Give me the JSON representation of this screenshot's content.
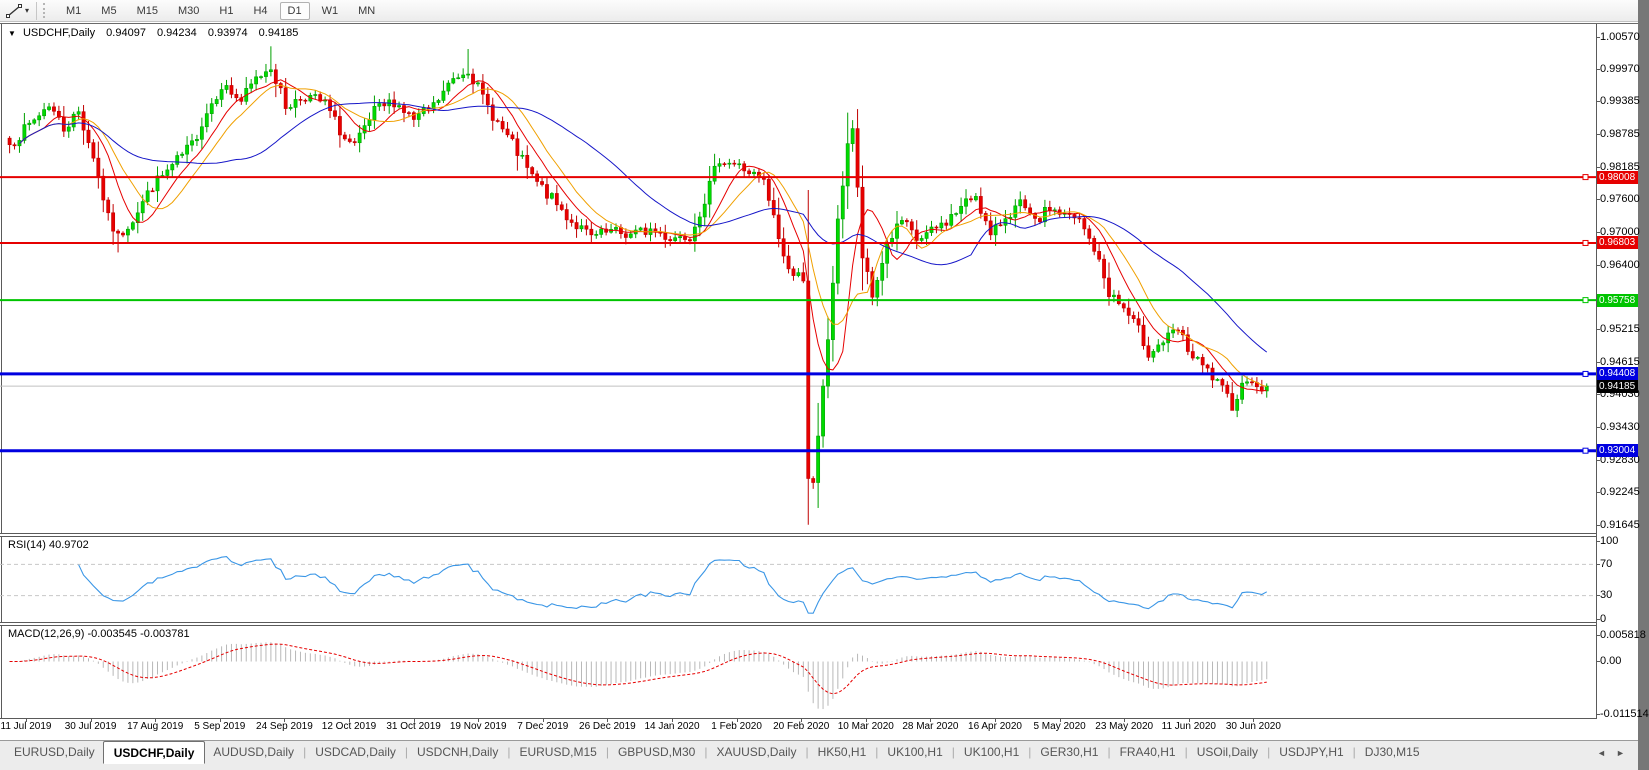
{
  "toolbar": {
    "timeframes": [
      "M1",
      "M5",
      "M15",
      "M30",
      "H1",
      "H4",
      "D1",
      "W1",
      "MN"
    ],
    "active_timeframe": "D1",
    "line_tool_dropdown": "▾"
  },
  "title_bar": {
    "dropdown_glyph": "▼",
    "symbol": "USDCHF,Daily",
    "open": "0.94097",
    "high": "0.94234",
    "low": "0.93974",
    "close": "0.94185"
  },
  "price_axis": {
    "ticks": [
      "1.00570",
      "0.99970",
      "0.99385",
      "0.98785",
      "0.98185",
      "0.97600",
      "0.97000",
      "0.96400",
      "0.95215",
      "0.94615",
      "0.94030",
      "0.93430",
      "0.92830",
      "0.92245",
      "0.91645"
    ]
  },
  "levels": [
    {
      "label": "0.98008",
      "value": 0.98008,
      "color": "#e60000",
      "thickness": 2
    },
    {
      "label": "0.96803",
      "value": 0.96803,
      "color": "#e60000",
      "thickness": 2
    },
    {
      "label": "0.95758",
      "value": 0.95758,
      "color": "#00c400",
      "thickness": 2
    },
    {
      "label": "0.94408",
      "value": 0.94408,
      "color": "#0000e0",
      "thickness": 3
    },
    {
      "label": "0.93004",
      "value": 0.93004,
      "color": "#0000e0",
      "thickness": 3
    }
  ],
  "current_price": {
    "label": "0.94185",
    "value": 0.94185,
    "line_color": "#c0c0c0",
    "badge_color": "#000000"
  },
  "rsi_pane": {
    "label": "RSI(14) 40.9702",
    "ticks": [
      {
        "label": "100",
        "value": 100
      },
      {
        "label": "70",
        "value": 70
      },
      {
        "label": "30",
        "value": 30
      },
      {
        "label": "0",
        "value": 0
      }
    ],
    "guides": [
      70,
      30
    ],
    "line_color": "#3a96e6"
  },
  "macd_pane": {
    "label": "MACD(12,26,9) -0.003545 -0.003781",
    "ticks": [
      {
        "label": "0.005818",
        "value": 0.005818
      },
      {
        "label": "0.00",
        "value": 0
      },
      {
        "label": "-0.011514",
        "value": -0.011514
      }
    ],
    "histogram_color": "#b8b8b8",
    "signal_color": "#e60000"
  },
  "date_axis": [
    "11 Jul 2019",
    "30 Jul 2019",
    "17 Aug 2019",
    "5 Sep 2019",
    "24 Sep 2019",
    "12 Oct 2019",
    "31 Oct 2019",
    "19 Nov 2019",
    "7 Dec 2019",
    "26 Dec 2019",
    "14 Jan 2020",
    "1 Feb 2020",
    "20 Feb 2020",
    "10 Mar 2020",
    "28 Mar 2020",
    "16 Apr 2020",
    "5 May 2020",
    "23 May 2020",
    "11 Jun 2020",
    "30 Jun 2020"
  ],
  "tab_bar": {
    "tabs": [
      "EURUSD,Daily",
      "USDCHF,Daily",
      "AUDUSD,Daily",
      "USDCAD,Daily",
      "USDCNH,Daily",
      "EURUSD,M15",
      "GBPUSD,M30",
      "XAUUSD,Daily",
      "HK50,H1",
      "UK100,H1",
      "UK100,H1",
      "GER30,H1",
      "FRA40,H1",
      "USOil,Daily",
      "USDJPY,H1",
      "DJ30,M15"
    ],
    "active_index": 1,
    "scroll_left": "◄",
    "scroll_right": "►"
  },
  "chart_data": {
    "type": "candlestick",
    "symbol": "USDCHF",
    "timeframe": "Daily",
    "title": "USDCHF,Daily  O 0.94097  H 0.94234  L 0.93974  C 0.94185",
    "visible_range": {
      "first_date": "11 Jul 2019",
      "last_date": "30 Jun 2020",
      "price_axis_top": 1.0057,
      "price_axis_bottom": 0.91645
    },
    "num_candles": 256,
    "last_close": 0.94185,
    "up_color": "#00da00",
    "up_border": "#00a000",
    "down_color": "#e80000",
    "down_border": "#c00000",
    "close_waypoints": [
      [
        0,
        0.986
      ],
      [
        4,
        0.9895
      ],
      [
        8,
        0.9935
      ],
      [
        11,
        0.989
      ],
      [
        14,
        0.992
      ],
      [
        17,
        0.984
      ],
      [
        20,
        0.9725
      ],
      [
        22,
        0.969
      ],
      [
        25,
        0.9725
      ],
      [
        29,
        0.9785
      ],
      [
        33,
        0.982
      ],
      [
        37,
        0.986
      ],
      [
        40,
        0.992
      ],
      [
        43,
        0.997
      ],
      [
        47,
        0.994
      ],
      [
        50,
        0.998
      ],
      [
        53,
        1.0005
      ],
      [
        56,
        0.993
      ],
      [
        60,
        0.995
      ],
      [
        64,
        0.9935
      ],
      [
        68,
        0.987
      ],
      [
        70,
        0.9855
      ],
      [
        74,
        0.992
      ],
      [
        78,
        0.994
      ],
      [
        82,
        0.9905
      ],
      [
        86,
        0.993
      ],
      [
        90,
        0.998
      ],
      [
        93,
        1.0
      ],
      [
        96,
        0.9945
      ],
      [
        99,
        0.99
      ],
      [
        102,
        0.986
      ],
      [
        106,
        0.98
      ],
      [
        110,
        0.976
      ],
      [
        114,
        0.972
      ],
      [
        118,
        0.969
      ],
      [
        122,
        0.97
      ],
      [
        126,
        0.9695
      ],
      [
        130,
        0.9705
      ],
      [
        134,
        0.969
      ],
      [
        138,
        0.9695
      ],
      [
        141,
        0.976
      ],
      [
        144,
        0.9835
      ],
      [
        147,
        0.9825
      ],
      [
        150,
        0.981
      ],
      [
        153,
        0.979
      ],
      [
        155,
        0.9725
      ],
      [
        157,
        0.9655
      ],
      [
        159,
        0.962
      ],
      [
        161,
        0.962
      ],
      [
        162,
        0.9255
      ],
      [
        163,
        0.9235
      ],
      [
        164,
        0.932
      ],
      [
        166,
        0.9505
      ],
      [
        168,
        0.9715
      ],
      [
        170,
        0.9865
      ],
      [
        171,
        0.989
      ],
      [
        172,
        0.9775
      ],
      [
        173,
        0.9655
      ],
      [
        175,
        0.958
      ],
      [
        178,
        0.968
      ],
      [
        181,
        0.972
      ],
      [
        184,
        0.9685
      ],
      [
        187,
        0.97
      ],
      [
        190,
        0.972
      ],
      [
        193,
        0.9745
      ],
      [
        196,
        0.977
      ],
      [
        199,
        0.969
      ],
      [
        202,
        0.973
      ],
      [
        205,
        0.975
      ],
      [
        208,
        0.9715
      ],
      [
        211,
        0.9745
      ],
      [
        214,
        0.973
      ],
      [
        217,
        0.972
      ],
      [
        220,
        0.967
      ],
      [
        223,
        0.959
      ],
      [
        226,
        0.956
      ],
      [
        229,
        0.952
      ],
      [
        231,
        0.948
      ],
      [
        234,
        0.95
      ],
      [
        237,
        0.952
      ],
      [
        240,
        0.947
      ],
      [
        243,
        0.9445
      ],
      [
        246,
        0.941
      ],
      [
        248,
        0.9385
      ],
      [
        251,
        0.9435
      ],
      [
        252,
        0.9425
      ],
      [
        254,
        0.94097
      ],
      [
        255,
        0.94185
      ]
    ],
    "wick_overrides": {
      "22": {
        "low": 0.9663
      },
      "53": {
        "high": 1.004
      },
      "93": {
        "high": 1.0035
      },
      "162": {
        "low": 0.9165
      },
      "171": {
        "high": 0.9905
      },
      "248": {
        "low": 0.9375
      },
      "255": {
        "high": 0.94234,
        "low": 0.93974
      }
    },
    "moving_averages": [
      {
        "name": "fast",
        "period": 8,
        "color": "#e60000"
      },
      {
        "name": "medium",
        "period": 13,
        "color": "#f0a000"
      },
      {
        "name": "slow",
        "period": 34,
        "color": "#1616c8"
      }
    ],
    "indicators": [
      {
        "name": "RSI",
        "period": 14,
        "current": 40.9702
      },
      {
        "name": "MACD",
        "fast": 12,
        "slow": 26,
        "signal": 9,
        "macd_value": -0.003545,
        "signal_value": -0.003781
      }
    ]
  }
}
